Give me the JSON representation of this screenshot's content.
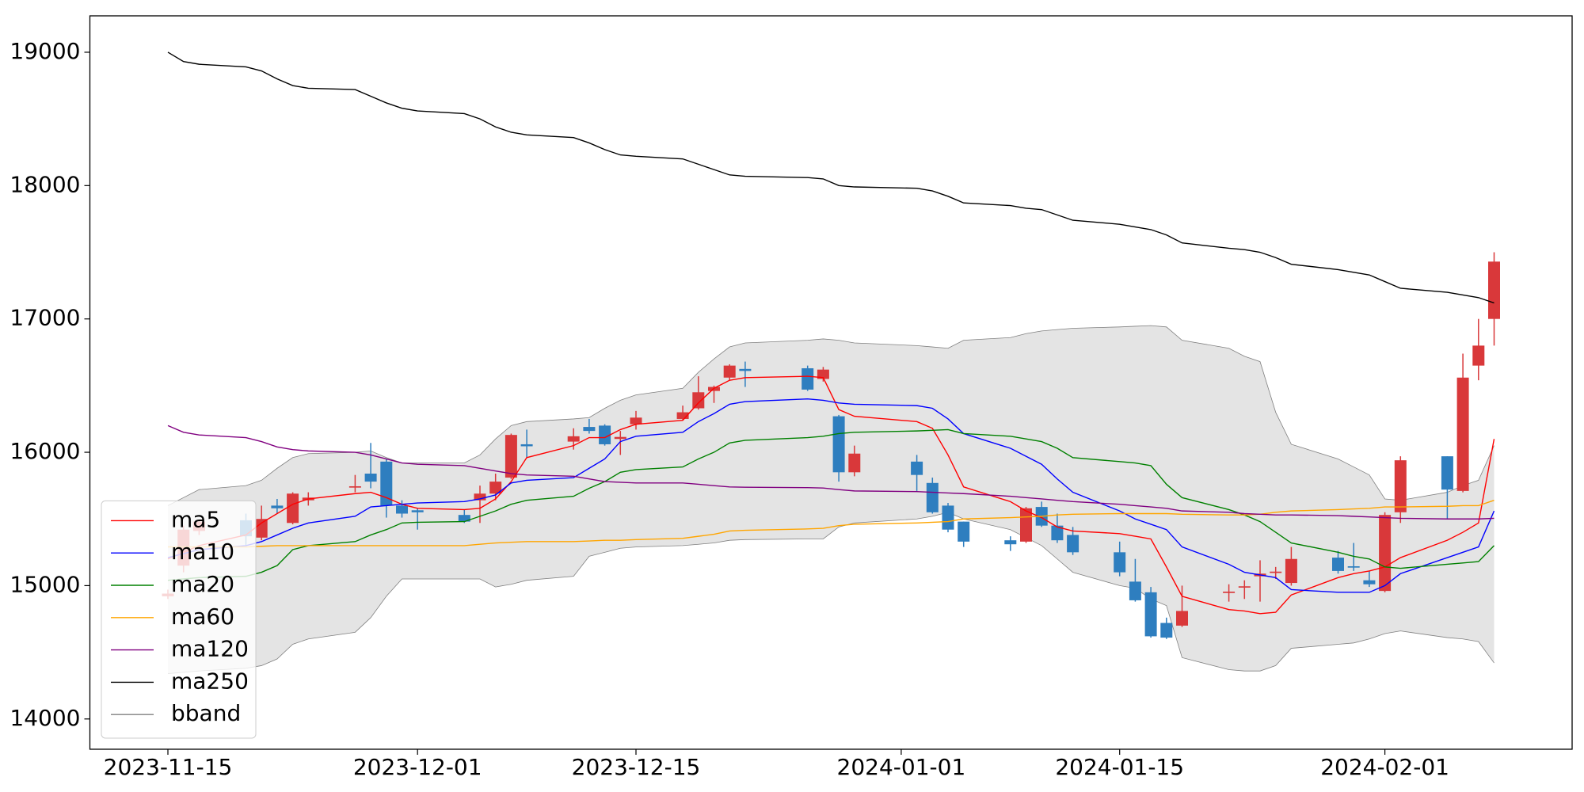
{
  "chart_data": {
    "type": "candlestick",
    "x": [
      "2023-11-15",
      "2023-11-16",
      "2023-11-17",
      "2023-11-20",
      "2023-11-21",
      "2023-11-22",
      "2023-11-23",
      "2023-11-24",
      "2023-11-27",
      "2023-11-28",
      "2023-11-29",
      "2023-11-30",
      "2023-12-01",
      "2023-12-04",
      "2023-12-05",
      "2023-12-06",
      "2023-12-07",
      "2023-12-08",
      "2023-12-11",
      "2023-12-12",
      "2023-12-13",
      "2023-12-14",
      "2023-12-15",
      "2023-12-18",
      "2023-12-19",
      "2023-12-20",
      "2023-12-21",
      "2023-12-22",
      "2023-12-26",
      "2023-12-27",
      "2023-12-28",
      "2023-12-29",
      "2024-01-02",
      "2024-01-03",
      "2024-01-04",
      "2024-01-05",
      "2024-01-08",
      "2024-01-09",
      "2024-01-10",
      "2024-01-11",
      "2024-01-12",
      "2024-01-15",
      "2024-01-16",
      "2024-01-17",
      "2024-01-18",
      "2024-01-19",
      "2024-01-22",
      "2024-01-23",
      "2024-01-24",
      "2024-01-25",
      "2024-01-26",
      "2024-01-29",
      "2024-01-30",
      "2024-01-31",
      "2024-02-01",
      "2024-02-02",
      "2024-02-05",
      "2024-02-06",
      "2024-02-07",
      "2024-02-08"
    ],
    "candles": {
      "up_color": "#d9383a",
      "down_color": "#2e7ebf",
      "open": [
        14920,
        15150,
        15410,
        15490,
        15360,
        15600,
        15470,
        15640,
        15735,
        15840,
        15930,
        15600,
        15565,
        15530,
        15640,
        15690,
        15810,
        16060,
        16080,
        16190,
        16200,
        16100,
        16210,
        16250,
        16330,
        16460,
        16560,
        16625,
        16630,
        16550,
        16270,
        15850,
        15930,
        15770,
        15600,
        15480,
        15340,
        15330,
        15590,
        15450,
        15380,
        15250,
        15030,
        14950,
        14720,
        14700,
        14945,
        14985,
        15070,
        15095,
        15020,
        15210,
        15145,
        15040,
        14960,
        15550,
        15970,
        15710,
        16650,
        17000
      ],
      "high": [
        14970,
        15450,
        15490,
        15540,
        15600,
        15650,
        15700,
        15700,
        15830,
        16070,
        15950,
        15640,
        15580,
        15570,
        15750,
        15840,
        16140,
        16170,
        16180,
        16250,
        16210,
        16160,
        16310,
        16350,
        16570,
        16500,
        16660,
        16680,
        16650,
        16640,
        16280,
        16050,
        15980,
        15810,
        15620,
        15480,
        15370,
        15590,
        15630,
        15540,
        15440,
        15330,
        15200,
        14990,
        14760,
        15000,
        15010,
        15040,
        15190,
        15140,
        15290,
        15260,
        15320,
        15110,
        15550,
        15970,
        15970,
        16740,
        17000,
        17500
      ],
      "low": [
        14900,
        15100,
        15380,
        15300,
        15340,
        15540,
        15460,
        15600,
        15700,
        15730,
        15510,
        15510,
        15420,
        15470,
        15470,
        15640,
        15800,
        15960,
        16020,
        16140,
        16050,
        15980,
        16170,
        16240,
        16320,
        16370,
        16540,
        16490,
        16460,
        16530,
        15780,
        15820,
        15710,
        15540,
        15400,
        15290,
        15260,
        15320,
        15440,
        15320,
        15230,
        15070,
        14880,
        14610,
        14600,
        14690,
        14880,
        14900,
        14880,
        15050,
        15000,
        15090,
        15110,
        14990,
        14950,
        15470,
        15500,
        15700,
        16540,
        16800
      ],
      "close": [
        14940,
        15420,
        15480,
        15370,
        15500,
        15580,
        15690,
        15660,
        15745,
        15780,
        15600,
        15540,
        15550,
        15480,
        15690,
        15780,
        16130,
        16045,
        16120,
        16160,
        16060,
        16115,
        16260,
        16300,
        16450,
        16490,
        16650,
        16610,
        16470,
        16620,
        15850,
        15990,
        15830,
        15550,
        15420,
        15330,
        15310,
        15580,
        15450,
        15340,
        15250,
        15100,
        14890,
        14620,
        14610,
        14810,
        14955,
        14995,
        15090,
        15105,
        15200,
        15110,
        15135,
        15010,
        15530,
        15940,
        15720,
        16560,
        16800,
        17430
      ]
    },
    "series": [
      {
        "name": "ma5",
        "color": "#ff0000",
        "values": [
          15200,
          15250,
          15300,
          15380,
          15470,
          15540,
          15610,
          15650,
          15690,
          15700,
          15660,
          15610,
          15580,
          15570,
          15580,
          15650,
          15780,
          15960,
          16050,
          16110,
          16110,
          16170,
          16210,
          16240,
          16370,
          16480,
          16540,
          16560,
          16570,
          16560,
          16320,
          16270,
          16230,
          16180,
          15980,
          15740,
          15630,
          15560,
          15510,
          15440,
          15410,
          15390,
          15370,
          15350,
          15140,
          14920,
          14820,
          14810,
          14790,
          14800,
          14930,
          15060,
          15090,
          15110,
          15140,
          15210,
          15340,
          15400,
          15470,
          16100
        ]
      },
      {
        "name": "ma10",
        "color": "#0000ff",
        "values": [
          15210,
          15240,
          15270,
          15300,
          15330,
          15380,
          15430,
          15470,
          15520,
          15590,
          15600,
          15610,
          15620,
          15630,
          15650,
          15680,
          15770,
          15790,
          15810,
          15880,
          15950,
          16080,
          16120,
          16150,
          16230,
          16290,
          16360,
          16380,
          16400,
          16390,
          16370,
          16360,
          16350,
          16330,
          16250,
          16140,
          16030,
          15970,
          15910,
          15800,
          15700,
          15560,
          15500,
          15460,
          15420,
          15290,
          15160,
          15100,
          15080,
          15060,
          14970,
          14950,
          14950,
          14950,
          15000,
          15090,
          15210,
          15250,
          15290,
          15560
        ]
      },
      {
        "name": "ma20",
        "color": "#008000",
        "values": [
          15040,
          15050,
          15060,
          15070,
          15100,
          15150,
          15270,
          15300,
          15330,
          15380,
          15420,
          15470,
          15475,
          15480,
          15520,
          15560,
          15610,
          15640,
          15670,
          15730,
          15780,
          15850,
          15870,
          15890,
          15950,
          16000,
          16070,
          16090,
          16110,
          16120,
          16140,
          16150,
          16160,
          16165,
          16170,
          16140,
          16120,
          16100,
          16080,
          16030,
          15960,
          15930,
          15920,
          15900,
          15760,
          15660,
          15570,
          15530,
          15480,
          15400,
          15320,
          15250,
          15220,
          15200,
          15140,
          15130,
          15160,
          15170,
          15180,
          15300
        ]
      },
      {
        "name": "ma60",
        "color": "#ffa500",
        "values": [
          15290,
          15290,
          15290,
          15290,
          15295,
          15300,
          15300,
          15300,
          15300,
          15300,
          15300,
          15300,
          15300,
          15300,
          15310,
          15320,
          15325,
          15330,
          15330,
          15335,
          15340,
          15340,
          15345,
          15355,
          15370,
          15385,
          15410,
          15415,
          15425,
          15430,
          15450,
          15460,
          15470,
          15475,
          15480,
          15500,
          15510,
          15515,
          15520,
          15530,
          15535,
          15540,
          15540,
          15540,
          15540,
          15535,
          15530,
          15530,
          15535,
          15550,
          15560,
          15570,
          15575,
          15580,
          15590,
          15590,
          15595,
          15600,
          15600,
          15640
        ]
      },
      {
        "name": "ma120",
        "color": "#800080",
        "values": [
          16200,
          16150,
          16130,
          16110,
          16080,
          16040,
          16020,
          16010,
          16000,
          15980,
          15950,
          15920,
          15910,
          15900,
          15880,
          15860,
          15840,
          15830,
          15820,
          15800,
          15780,
          15775,
          15770,
          15770,
          15760,
          15750,
          15740,
          15738,
          15735,
          15732,
          15720,
          15710,
          15705,
          15700,
          15695,
          15690,
          15670,
          15660,
          15650,
          15640,
          15630,
          15610,
          15600,
          15590,
          15580,
          15560,
          15550,
          15540,
          15535,
          15530,
          15530,
          15525,
          15520,
          15515,
          15510,
          15505,
          15500,
          15500,
          15500,
          15505
        ]
      },
      {
        "name": "ma250",
        "color": "#000000",
        "values": [
          19000,
          18930,
          18910,
          18890,
          18860,
          18800,
          18750,
          18730,
          18720,
          18670,
          18620,
          18580,
          18560,
          18540,
          18500,
          18440,
          18400,
          18380,
          18360,
          18320,
          18270,
          18230,
          18220,
          18200,
          18160,
          18120,
          18080,
          18070,
          18060,
          18050,
          18000,
          17990,
          17980,
          17960,
          17920,
          17870,
          17850,
          17830,
          17820,
          17780,
          17740,
          17710,
          17690,
          17670,
          17630,
          17570,
          17530,
          17520,
          17500,
          17460,
          17410,
          17370,
          17350,
          17330,
          17280,
          17230,
          17200,
          17180,
          17160,
          17120
        ]
      }
    ],
    "bband": {
      "name": "bband",
      "color": "#808080",
      "fill": "#e4e4e4",
      "upper": [
        15600,
        15660,
        15720,
        15750,
        15790,
        15880,
        15960,
        15990,
        16000,
        16010,
        15960,
        15920,
        15920,
        15920,
        15980,
        16100,
        16200,
        16230,
        16250,
        16260,
        16330,
        16390,
        16430,
        16480,
        16600,
        16700,
        16790,
        16820,
        16840,
        16850,
        16840,
        16820,
        16800,
        16790,
        16780,
        16840,
        16860,
        16890,
        16910,
        16920,
        16930,
        16940,
        16945,
        16950,
        16940,
        16840,
        16780,
        16720,
        16680,
        16300,
        16060,
        15950,
        15890,
        15830,
        15650,
        15640,
        15700,
        15750,
        15790,
        16050
      ],
      "lower": [
        14340,
        14350,
        14360,
        14380,
        14400,
        14450,
        14560,
        14600,
        14650,
        14760,
        14920,
        15050,
        15050,
        15050,
        15050,
        14990,
        15010,
        15040,
        15070,
        15220,
        15250,
        15280,
        15290,
        15300,
        15310,
        15320,
        15340,
        15345,
        15350,
        15350,
        15440,
        15470,
        15500,
        15520,
        15550,
        15500,
        15420,
        15360,
        15300,
        15200,
        15100,
        15000,
        14980,
        14900,
        14850,
        14460,
        14370,
        14360,
        14360,
        14400,
        14530,
        14560,
        14570,
        14600,
        14640,
        14660,
        14610,
        14600,
        14580,
        14420
      ]
    },
    "xlim": [
      "2023-11-10",
      "2024-02-13"
    ],
    "xticks": [
      "2023-11-15",
      "2023-12-01",
      "2023-12-15",
      "2024-01-01",
      "2024-01-15",
      "2024-02-01"
    ],
    "ylim": [
      13773,
      19273
    ],
    "yticks": [
      14000,
      15000,
      16000,
      17000,
      18000,
      19000
    ],
    "grid": false,
    "legend": "lower left"
  }
}
